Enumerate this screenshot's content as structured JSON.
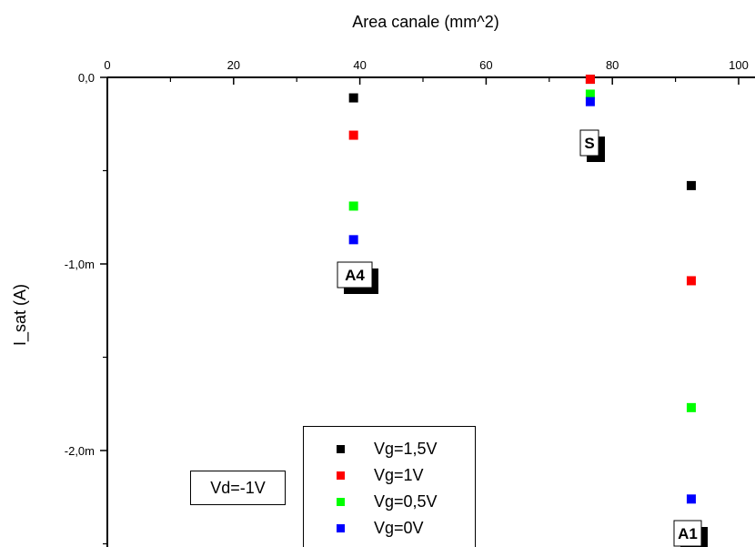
{
  "chart_data": {
    "type": "scatter",
    "title": "",
    "xlabel": "Area canale (mm^2)",
    "ylabel": "I_sat (A)",
    "xlim": [
      0,
      100
    ],
    "ylim": [
      -2.5,
      0
    ],
    "x_ticks": [
      "0",
      "20",
      "40",
      "60",
      "80",
      "100"
    ],
    "y_ticks": [
      "0,0",
      "-1,0m",
      "-2,0m"
    ],
    "x_axis_position": "top",
    "grid": false,
    "legend_position": "bottom-center",
    "annotation_box": "Vd=-1V",
    "point_labels": [
      "A4",
      "S",
      "A1"
    ],
    "series": [
      {
        "name": "Vg=1,5V",
        "color": "#000000",
        "x": [
          39,
          76.5,
          92.5
        ],
        "y": [
          -0.11,
          -0.01,
          -0.58
        ]
      },
      {
        "name": "Vg=1V",
        "color": "#ff0000",
        "x": [
          39,
          76.5,
          92.5
        ],
        "y": [
          -0.31,
          -0.01,
          -1.09
        ]
      },
      {
        "name": "Vg=0,5V",
        "color": "#00ff00",
        "x": [
          39,
          76.5,
          92.5
        ],
        "y": [
          -0.69,
          -0.09,
          -1.77
        ]
      },
      {
        "name": "Vg=0V",
        "color": "#0000ff",
        "x": [
          39,
          76.5,
          92.5
        ],
        "y": [
          -0.87,
          -0.13,
          -2.26
        ]
      }
    ]
  }
}
